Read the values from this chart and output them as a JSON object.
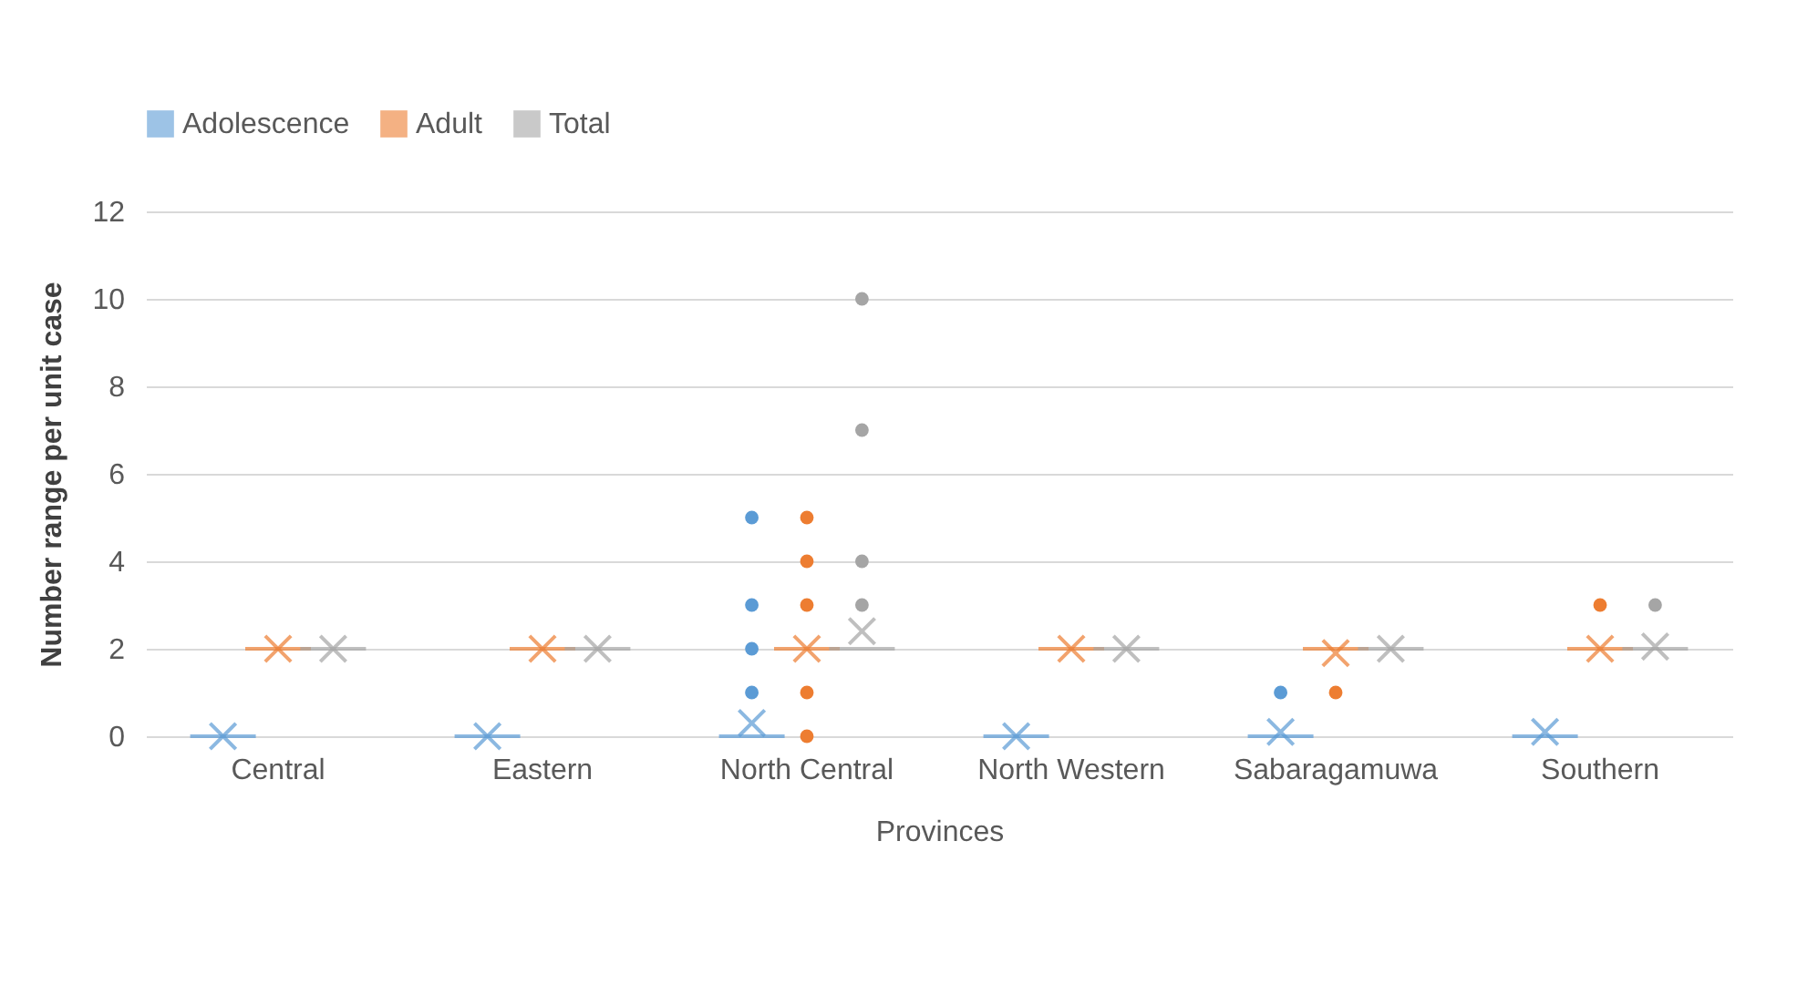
{
  "chart_data": {
    "type": "box",
    "xlabel": "Provinces",
    "ylabel": "Number range per unit case",
    "categories": [
      "Central",
      "Eastern",
      "North Central",
      "North Western",
      "Sabaragamuwa",
      "Southern"
    ],
    "ylim": [
      0,
      12
    ],
    "yticks": [
      0,
      2,
      4,
      6,
      8,
      10,
      12
    ],
    "grid": "y",
    "legend": "top",
    "series": [
      {
        "name": "Adolescence",
        "color": "#5b9bd5",
        "boxes": [
          {
            "low": 0,
            "q1": 0,
            "median": 0,
            "q3": 0,
            "high": 0,
            "mean": 0
          },
          {
            "low": 0,
            "q1": 0,
            "median": 0,
            "q3": 0,
            "high": 0,
            "mean": 0
          },
          {
            "low": 0,
            "q1": 0,
            "median": 0,
            "q3": 0,
            "high": 0,
            "mean": 0.3,
            "outliers": [
              1,
              2,
              3,
              5
            ]
          },
          {
            "low": 0,
            "q1": 0,
            "median": 0,
            "q3": 0,
            "high": 0,
            "mean": 0
          },
          {
            "low": 0,
            "q1": 0,
            "median": 0,
            "q3": 0,
            "high": 0,
            "mean": 0.1,
            "outliers": [
              1
            ]
          },
          {
            "low": 0,
            "q1": 0,
            "median": 0,
            "q3": 0,
            "high": 0,
            "mean": 0.1
          }
        ]
      },
      {
        "name": "Adult",
        "color": "#ed7d31",
        "boxes": [
          {
            "low": 2,
            "q1": 2,
            "median": 2,
            "q3": 2,
            "high": 2,
            "mean": 2
          },
          {
            "low": 2,
            "q1": 2,
            "median": 2,
            "q3": 2,
            "high": 2,
            "mean": 2
          },
          {
            "low": 2,
            "q1": 2,
            "median": 2,
            "q3": 2,
            "high": 2,
            "mean": 2,
            "outliers": [
              0,
              1,
              3,
              4,
              5
            ]
          },
          {
            "low": 2,
            "q1": 2,
            "median": 2,
            "q3": 2,
            "high": 2,
            "mean": 2
          },
          {
            "low": 2,
            "q1": 2,
            "median": 2,
            "q3": 2,
            "high": 2,
            "mean": 1.9,
            "outliers": [
              1
            ]
          },
          {
            "low": 2,
            "q1": 2,
            "median": 2,
            "q3": 2,
            "high": 2,
            "mean": 2,
            "outliers": [
              3
            ]
          }
        ]
      },
      {
        "name": "Total",
        "color": "#a5a5a5",
        "boxes": [
          {
            "low": 2,
            "q1": 2,
            "median": 2,
            "q3": 2,
            "high": 2,
            "mean": 2
          },
          {
            "low": 2,
            "q1": 2,
            "median": 2,
            "q3": 2,
            "high": 2,
            "mean": 2
          },
          {
            "low": 2,
            "q1": 2,
            "median": 2,
            "q3": 2,
            "high": 2,
            "mean": 2.4,
            "outliers": [
              3,
              4,
              7,
              10
            ]
          },
          {
            "low": 2,
            "q1": 2,
            "median": 2,
            "q3": 2,
            "high": 2,
            "mean": 2
          },
          {
            "low": 2,
            "q1": 2,
            "median": 2,
            "q3": 2,
            "high": 2,
            "mean": 2
          },
          {
            "low": 2,
            "q1": 2,
            "median": 2,
            "q3": 2,
            "high": 2,
            "mean": 2.05,
            "outliers": [
              3
            ]
          }
        ]
      }
    ]
  }
}
